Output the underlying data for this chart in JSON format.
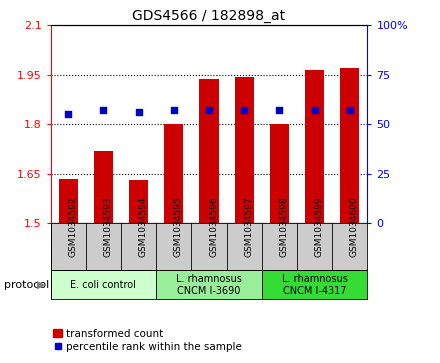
{
  "title": "GDS4566 / 182898_at",
  "samples": [
    "GSM1034592",
    "GSM1034593",
    "GSM1034594",
    "GSM1034595",
    "GSM1034596",
    "GSM1034597",
    "GSM1034598",
    "GSM1034599",
    "GSM1034600"
  ],
  "red_values": [
    1.635,
    1.72,
    1.632,
    1.8,
    1.937,
    1.945,
    1.8,
    1.965,
    1.97
  ],
  "blue_values": [
    55,
    57,
    56,
    57,
    57,
    57,
    57,
    57,
    57
  ],
  "y_min": 1.5,
  "y_max": 2.1,
  "y_ticks": [
    1.5,
    1.65,
    1.8,
    1.95,
    2.1
  ],
  "y_tick_labels": [
    "1.5",
    "1.65",
    "1.8",
    "1.95",
    "2.1"
  ],
  "y2_ticks": [
    0,
    25,
    50,
    75,
    100
  ],
  "y2_tick_labels": [
    "0",
    "25",
    "50",
    "75",
    "100%"
  ],
  "bar_color": "#cc0000",
  "dot_color": "#0000cc",
  "bar_width": 0.55,
  "group_colors": [
    "#ccffcc",
    "#99ee99",
    "#33dd33"
  ],
  "group_labels": [
    "E. coli control",
    "L. rhamnosus\nCNCM I-3690",
    "L. rhamnosus\nCNCM I-4317"
  ],
  "group_ranges": [
    [
      0,
      2
    ],
    [
      3,
      5
    ],
    [
      6,
      8
    ]
  ],
  "protocol_label": "protocol",
  "legend_red": "transformed count",
  "legend_blue": "percentile rank within the sample"
}
